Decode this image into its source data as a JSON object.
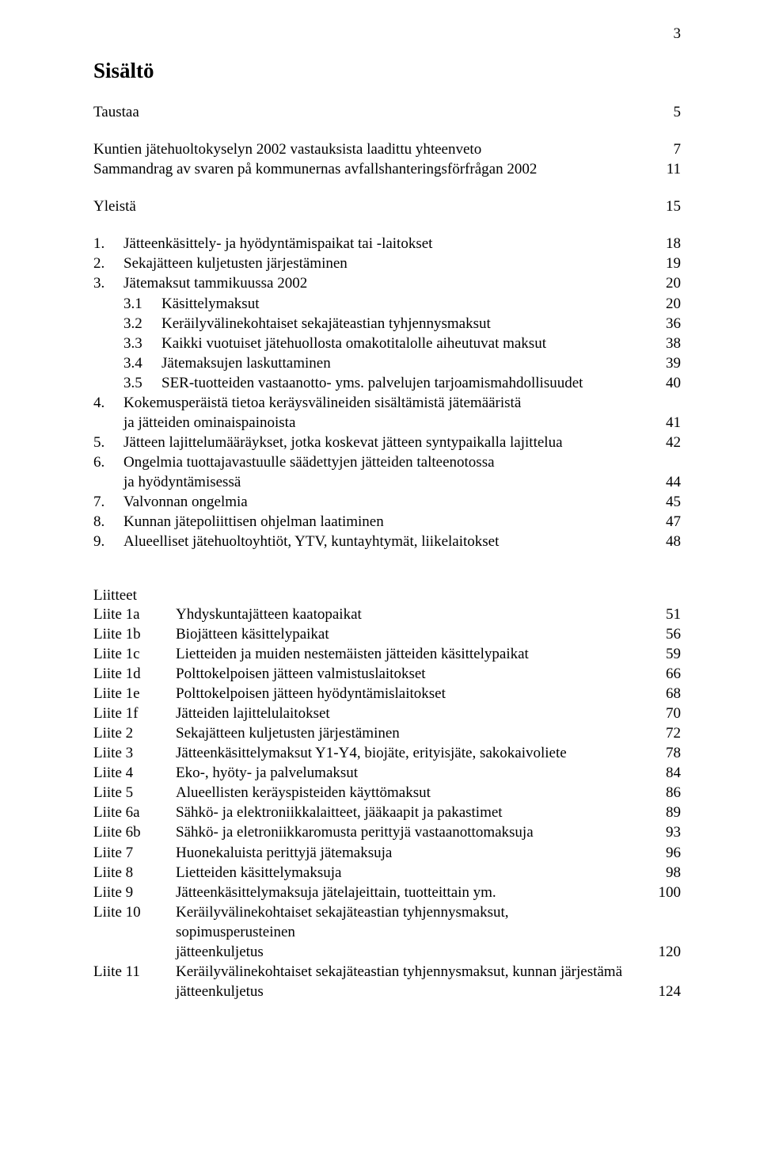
{
  "page_number": "3",
  "title": "Sisältö",
  "entries": [
    {
      "type": "row",
      "text": "Taustaa",
      "page": "5"
    },
    {
      "type": "gap",
      "size": "md"
    },
    {
      "type": "row",
      "text": "Kuntien jätehuoltokyselyn 2002 vastauksista laadittu yhteenveto",
      "page": "7"
    },
    {
      "type": "row",
      "text": "Sammandrag av svaren på kommunernas avfallshanteringsförfrågan 2002",
      "page": "11"
    },
    {
      "type": "gap",
      "size": "md"
    },
    {
      "type": "row",
      "text": "Yleistä",
      "page": "15"
    },
    {
      "type": "gap",
      "size": "md"
    },
    {
      "type": "numrow",
      "num": "1.",
      "text": "Jätteenkäsittely- ja hyödyntämispaikat tai -laitokset",
      "page": "18"
    },
    {
      "type": "numrow",
      "num": "2.",
      "text": "Sekajätteen kuljetusten järjestäminen",
      "page": "19"
    },
    {
      "type": "numrow",
      "num": "3.",
      "text": "Jätemaksut tammikuussa 2002",
      "page": "20"
    },
    {
      "type": "subrow",
      "num": "3.1",
      "text": "Käsittelymaksut",
      "page": "20"
    },
    {
      "type": "subrow",
      "num": "3.2",
      "text": "Keräilyvälinekohtaiset sekajäteastian tyhjennysmaksut",
      "page": "36"
    },
    {
      "type": "subrow",
      "num": "3.3",
      "text": "Kaikki vuotuiset jätehuollosta omakotitalolle aiheutuvat maksut",
      "page": "38"
    },
    {
      "type": "subrow",
      "num": "3.4",
      "text": "Jätemaksujen laskuttaminen",
      "page": "39"
    },
    {
      "type": "subrow",
      "num": "3.5",
      "text": "SER-tuotteiden vastaanotto- yms. palvelujen tarjoamismahdollisuudet",
      "page": "40"
    },
    {
      "type": "numrow",
      "num": "4.",
      "text": "Kokemusperäistä tietoa keräysvälineiden sisältämistä jätemääristä",
      "page": ""
    },
    {
      "type": "controw",
      "text": "ja jätteiden ominaispainoista",
      "page": "41"
    },
    {
      "type": "numrow",
      "num": "5.",
      "text": "Jätteen lajittelumääräykset, jotka koskevat jätteen syntypaikalla lajittelua",
      "page": "42"
    },
    {
      "type": "numrow",
      "num": "6.",
      "text": "Ongelmia tuottajavastuulle säädettyjen jätteiden talteenotossa",
      "page": ""
    },
    {
      "type": "controw",
      "text": "ja hyödyntämisessä",
      "page": "44"
    },
    {
      "type": "numrow",
      "num": "7.",
      "text": "Valvonnan ongelmia",
      "page": "45"
    },
    {
      "type": "numrow",
      "num": "8.",
      "text": "Kunnan jätepoliittisen ohjelman laatiminen",
      "page": "47"
    },
    {
      "type": "numrow",
      "num": "9.",
      "text": "Alueelliset jätehuoltoyhtiöt, YTV, kuntayhtymät, liikelaitokset",
      "page": "48"
    }
  ],
  "liitteet_head": "Liitteet",
  "liitteet": [
    {
      "col1": "Liite 1a",
      "text": "Yhdyskuntajätteen kaatopaikat",
      "page": "51"
    },
    {
      "col1": "Liite 1b",
      "text": "Biojätteen käsittelypaikat",
      "page": "56"
    },
    {
      "col1": "Liite 1c",
      "text": "Lietteiden ja muiden nestemäisten jätteiden käsittelypaikat",
      "page": "59"
    },
    {
      "col1": "Liite 1d",
      "text": "Polttokelpoisen jätteen valmistuslaitokset",
      "page": "66"
    },
    {
      "col1": "Liite 1e",
      "text": "Polttokelpoisen jätteen hyödyntämislaitokset",
      "page": "68"
    },
    {
      "col1": "Liite 1f",
      "text": "Jätteiden lajittelulaitokset",
      "page": "70"
    },
    {
      "col1": "Liite 2",
      "text": "Sekajätteen kuljetusten järjestäminen",
      "page": "72"
    },
    {
      "col1": "Liite 3",
      "text": "Jätteenkäsittelymaksut Y1-Y4, biojäte, erityisjäte, sakokaivoliete",
      "page": "78"
    },
    {
      "col1": "Liite 4",
      "text": "Eko-, hyöty- ja palvelumaksut",
      "page": "84"
    },
    {
      "col1": "Liite 5",
      "text": "Alueellisten keräyspisteiden käyttömaksut",
      "page": "86"
    },
    {
      "col1": "Liite 6a",
      "text": "Sähkö- ja elektroniikkalaitteet, jääkaapit ja pakastimet",
      "page": "89"
    },
    {
      "col1": "Liite 6b",
      "text": "Sähkö- ja eletroniikkaromusta perittyjä vastaanottomaksuja",
      "page": "93"
    },
    {
      "col1": "Liite 7",
      "text": "Huonekaluista perittyjä jätemaksuja",
      "page": "96"
    },
    {
      "col1": "Liite 8",
      "text": "Lietteiden käsittelymaksuja",
      "page": "98"
    },
    {
      "col1": "Liite 9",
      "text": "Jätteenkäsittelymaksuja jätelajeittain, tuotteittain ym.",
      "page": "100"
    },
    {
      "col1": "Liite 10",
      "text": "Keräilyvälinekohtaiset sekajäteastian tyhjennysmaksut, sopimusperusteinen",
      "page": ""
    },
    {
      "col1": "",
      "text": "jätteenkuljetus",
      "page": "120"
    },
    {
      "col1": "Liite 11",
      "text": "Keräilyvälinekohtaiset sekajäteastian tyhjennysmaksut, kunnan järjestämä",
      "page": ""
    },
    {
      "col1": "",
      "text": "jätteenkuljetus",
      "page": "124"
    }
  ]
}
